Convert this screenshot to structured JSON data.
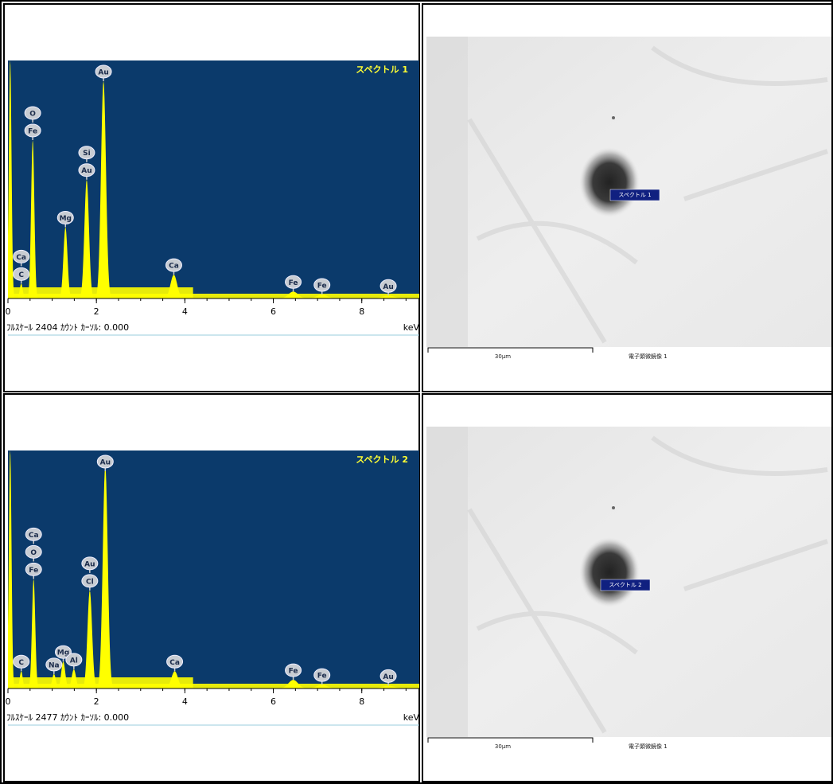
{
  "chart_data": [
    {
      "type": "spectrum",
      "title": "スペクトル 1",
      "footer": "ﾌﾙｽｹｰﾙ 2404 ｶｳﾝﾄ ｶｰｿﾙ: 0.000",
      "x_unit": "keV",
      "color": "#ffff00",
      "background": "#0b3a6b",
      "xlim": [
        0,
        9.3
      ],
      "xticks": [
        0,
        2,
        4,
        6,
        8
      ],
      "ylim": [
        0,
        2404
      ],
      "peaks": [
        {
          "energy": 0.05,
          "counts": 2404
        },
        {
          "energy": 0.3,
          "counts": 150,
          "labels": [
            "Ca",
            "C"
          ]
        },
        {
          "energy": 0.56,
          "counts": 1600,
          "labels": [
            "O",
            "Fe"
          ]
        },
        {
          "energy": 1.3,
          "counts": 720,
          "labels": [
            "Mg"
          ]
        },
        {
          "energy": 1.78,
          "counts": 1200,
          "labels": [
            "Si",
            "Au"
          ]
        },
        {
          "energy": 2.16,
          "counts": 2200,
          "labels": [
            "Au"
          ]
        },
        {
          "energy": 3.75,
          "counts": 240,
          "labels": [
            "Ca"
          ]
        },
        {
          "energy": 6.45,
          "counts": 70,
          "labels": [
            "Fe"
          ]
        },
        {
          "energy": 7.1,
          "counts": 40,
          "labels": [
            "Fe"
          ]
        },
        {
          "energy": 8.6,
          "counts": 30,
          "labels": [
            "Au"
          ]
        }
      ]
    },
    {
      "type": "spectrum",
      "title": "スペクトル 2",
      "footer": "ﾌﾙｽｹｰﾙ 2477 ｶｳﾝﾄ ｶｰｿﾙ: 0.000",
      "x_unit": "keV",
      "color": "#ffff00",
      "background": "#0b3a6b",
      "xlim": [
        0,
        9.3
      ],
      "xticks": [
        0,
        2,
        4,
        6,
        8
      ],
      "ylim": [
        0,
        2477
      ],
      "peaks": [
        {
          "energy": 0.05,
          "counts": 2477
        },
        {
          "energy": 0.3,
          "counts": 180,
          "labels": [
            "C"
          ]
        },
        {
          "energy": 0.58,
          "counts": 1140,
          "labels": [
            "Ca",
            "O",
            "Fe"
          ]
        },
        {
          "energy": 1.04,
          "counts": 150,
          "labels": [
            "Na"
          ]
        },
        {
          "energy": 1.25,
          "counts": 280,
          "labels": [
            "Mg"
          ]
        },
        {
          "energy": 1.49,
          "counts": 200,
          "labels": [
            "Al"
          ]
        },
        {
          "energy": 1.85,
          "counts": 1020,
          "labels": [
            "Au",
            "Cl"
          ]
        },
        {
          "energy": 2.2,
          "counts": 2320,
          "labels": [
            "Au"
          ]
        },
        {
          "energy": 3.77,
          "counts": 180,
          "labels": [
            "Ca"
          ]
        },
        {
          "energy": 6.45,
          "counts": 90,
          "labels": [
            "Fe"
          ]
        },
        {
          "energy": 7.1,
          "counts": 40,
          "labels": [
            "Fe"
          ]
        },
        {
          "energy": 8.6,
          "counts": 30,
          "labels": [
            "Au"
          ]
        }
      ]
    }
  ],
  "images": [
    {
      "marker": "スペクトル 1",
      "scale": "30µm",
      "caption": "電子顕微鏡像 1"
    },
    {
      "marker": "スペクトル 2",
      "scale": "30µm",
      "caption": "電子顕微鏡像 1"
    }
  ]
}
